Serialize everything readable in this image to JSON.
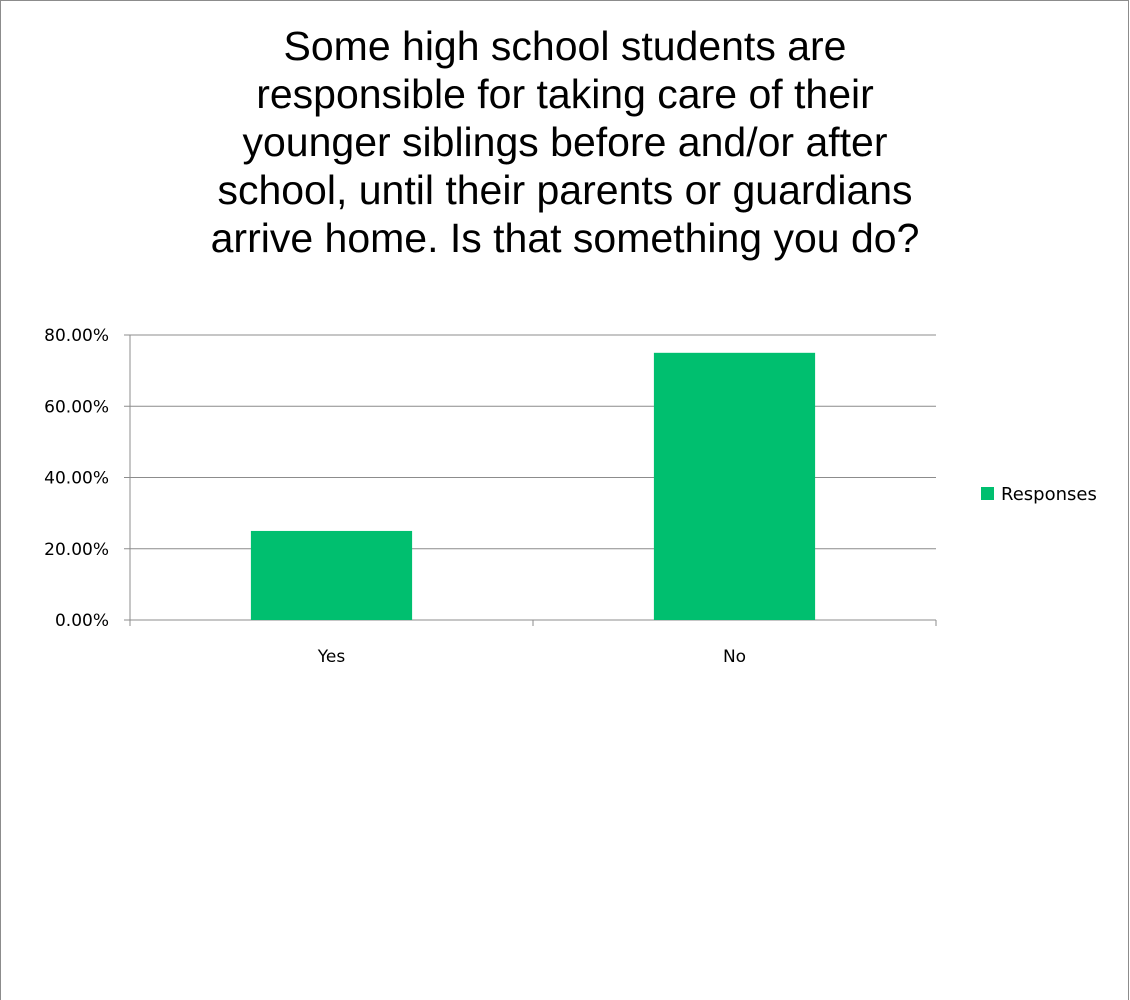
{
  "chart_data": {
    "type": "bar",
    "title_lines": [
      "Some high school students are",
      "responsible for taking care of their",
      "younger siblings before and/or after",
      "school, until their parents or guardians",
      "arrive home. Is that something you do?"
    ],
    "categories": [
      "Yes",
      "No"
    ],
    "series": [
      {
        "name": "Responses",
        "values": [
          0.25,
          0.75
        ],
        "color": "#00bf6f"
      }
    ],
    "ylim": [
      0,
      0.8
    ],
    "yticks": [
      0,
      0.2,
      0.4,
      0.6,
      0.8
    ],
    "ytick_labels": [
      "0.00%",
      "20.00%",
      "40.00%",
      "60.00%",
      "80.00%"
    ],
    "grid": true,
    "legend_position": "right"
  }
}
